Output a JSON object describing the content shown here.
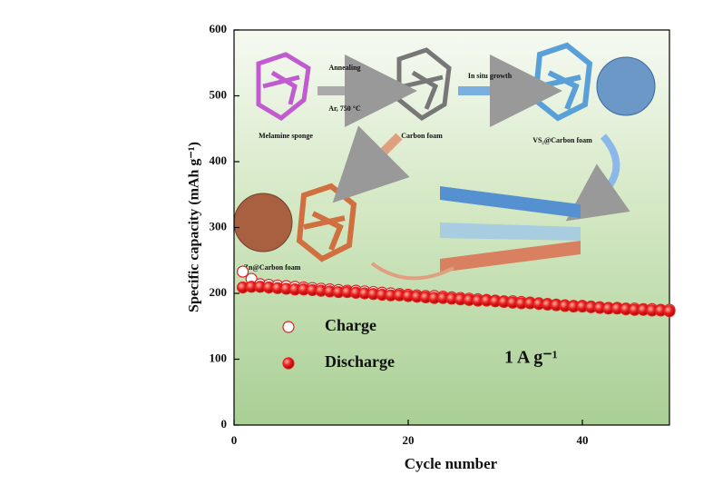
{
  "chart_data": {
    "type": "scatter",
    "xlabel": "Cycle number",
    "ylabel": "Specific capacity (mAh g⁻¹)",
    "annotation": "1 A g⁻¹",
    "xlim": [
      0,
      50
    ],
    "xticks": [
      0,
      20,
      40
    ],
    "ylim": [
      0,
      600
    ],
    "yticks": [
      0,
      100,
      200,
      300,
      400,
      500,
      600
    ],
    "x": [
      1,
      2,
      3,
      4,
      5,
      6,
      7,
      8,
      9,
      10,
      11,
      12,
      13,
      14,
      15,
      16,
      17,
      18,
      19,
      20,
      21,
      22,
      23,
      24,
      25,
      26,
      27,
      28,
      29,
      30,
      31,
      32,
      33,
      34,
      35,
      36,
      37,
      38,
      39,
      40,
      41,
      42,
      43,
      44,
      45,
      46,
      47,
      48,
      49,
      50
    ],
    "series": [
      {
        "name": "Charge",
        "color": "#e02020",
        "filled": false,
        "values": [
          233,
          222,
          214,
          213,
          212,
          211,
          210,
          209,
          208,
          207,
          206,
          205,
          204,
          204,
          203,
          202,
          201,
          200,
          199,
          198,
          197,
          196,
          196,
          195,
          194,
          193,
          192,
          191,
          190,
          189,
          188,
          188,
          187,
          186,
          185,
          184,
          183,
          182,
          181,
          181,
          180,
          179,
          178,
          178,
          177,
          177,
          176,
          176,
          175,
          175
        ]
      },
      {
        "name": "Discharge",
        "color": "#e02020",
        "filled": true,
        "values": [
          209,
          210,
          210,
          209,
          208,
          207,
          206,
          206,
          205,
          204,
          203,
          202,
          202,
          201,
          200,
          199,
          198,
          197,
          197,
          196,
          195,
          194,
          193,
          193,
          192,
          191,
          190,
          189,
          189,
          188,
          187,
          186,
          185,
          185,
          184,
          183,
          182,
          181,
          180,
          180,
          179,
          178,
          177,
          177,
          176,
          175,
          175,
          174,
          174,
          173
        ]
      }
    ],
    "inset_labels": {
      "step1": "Annealing",
      "step1_condition": "Ar, 750 °C",
      "step2": "In situ growth",
      "material1": "Melamine sponge",
      "material2": "Carbon foam",
      "material3": "VS₂@Carbon foam",
      "material4": "Zn@Carbon foam"
    }
  }
}
